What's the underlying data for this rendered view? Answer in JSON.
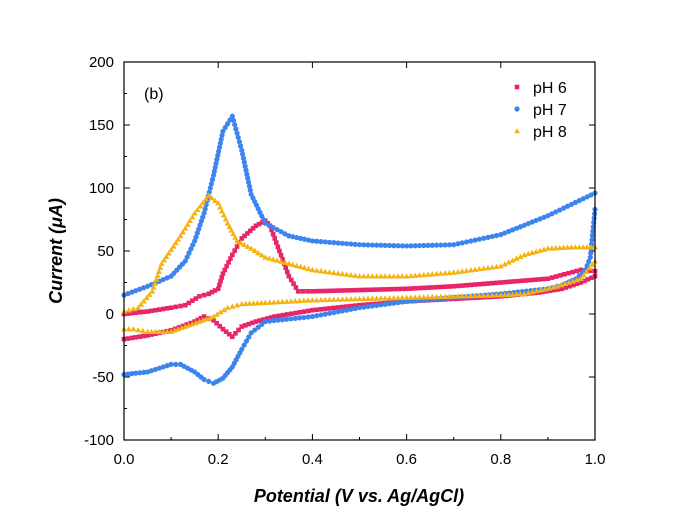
{
  "chart_data": {
    "type": "scatter",
    "panel_label": "(b)",
    "xlabel": "Potential (V vs. Ag/AgCl)",
    "ylabel": "Current (μA)",
    "xlim": [
      0.0,
      1.0
    ],
    "ylim": [
      -100,
      200
    ],
    "xticks": [
      "0.0",
      "0.2",
      "0.4",
      "0.6",
      "0.8",
      "1.0"
    ],
    "yticks": [
      "-100",
      "-50",
      "0",
      "50",
      "100",
      "150",
      "200"
    ],
    "legend_position": "top-right",
    "grid": false,
    "series": [
      {
        "name": "pH 6",
        "color": "#e8246a",
        "marker": "square",
        "forward": [
          [
            0.0,
            -20
          ],
          [
            0.05,
            -17
          ],
          [
            0.1,
            -13
          ],
          [
            0.15,
            -6
          ],
          [
            0.17,
            -2
          ],
          [
            0.19,
            -5
          ],
          [
            0.21,
            -12
          ],
          [
            0.23,
            -18
          ],
          [
            0.25,
            -10
          ],
          [
            0.28,
            -6
          ],
          [
            0.32,
            -2
          ],
          [
            0.4,
            3
          ],
          [
            0.5,
            7
          ],
          [
            0.6,
            10
          ],
          [
            0.7,
            12
          ],
          [
            0.8,
            14
          ],
          [
            0.88,
            17
          ],
          [
            0.93,
            20
          ],
          [
            0.97,
            25
          ],
          [
            1.0,
            30
          ]
        ],
        "reverse": [
          [
            1.0,
            34
          ],
          [
            0.97,
            35
          ],
          [
            0.9,
            28
          ],
          [
            0.8,
            25
          ],
          [
            0.7,
            22
          ],
          [
            0.6,
            20
          ],
          [
            0.5,
            19
          ],
          [
            0.4,
            18
          ],
          [
            0.37,
            18
          ],
          [
            0.35,
            30
          ],
          [
            0.33,
            50
          ],
          [
            0.31,
            70
          ],
          [
            0.3,
            74
          ],
          [
            0.28,
            70
          ],
          [
            0.25,
            60
          ],
          [
            0.23,
            47
          ],
          [
            0.21,
            32
          ],
          [
            0.2,
            20
          ],
          [
            0.18,
            16
          ],
          [
            0.16,
            14
          ],
          [
            0.13,
            7
          ],
          [
            0.1,
            5
          ],
          [
            0.05,
            2
          ],
          [
            0.0,
            0
          ]
        ]
      },
      {
        "name": "pH 7",
        "color": "#3d85ee",
        "marker": "circle",
        "forward": [
          [
            0.0,
            15
          ],
          [
            0.05,
            22
          ],
          [
            0.1,
            30
          ],
          [
            0.13,
            42
          ],
          [
            0.15,
            58
          ],
          [
            0.17,
            80
          ],
          [
            0.19,
            110
          ],
          [
            0.21,
            145
          ],
          [
            0.23,
            157
          ],
          [
            0.25,
            130
          ],
          [
            0.27,
            95
          ],
          [
            0.3,
            72
          ],
          [
            0.35,
            62
          ],
          [
            0.4,
            58
          ],
          [
            0.5,
            55
          ],
          [
            0.6,
            54
          ],
          [
            0.7,
            55
          ],
          [
            0.8,
            63
          ],
          [
            0.9,
            78
          ],
          [
            0.95,
            87
          ],
          [
            1.0,
            96
          ]
        ],
        "reverse": [
          [
            1.0,
            83
          ],
          [
            0.99,
            45
          ],
          [
            0.98,
            35
          ],
          [
            0.96,
            28
          ],
          [
            0.93,
            23
          ],
          [
            0.9,
            20
          ],
          [
            0.8,
            16
          ],
          [
            0.6,
            10
          ],
          [
            0.5,
            5
          ],
          [
            0.4,
            -2
          ],
          [
            0.3,
            -6
          ],
          [
            0.27,
            -15
          ],
          [
            0.25,
            -28
          ],
          [
            0.23,
            -42
          ],
          [
            0.21,
            -51
          ],
          [
            0.19,
            -55
          ],
          [
            0.17,
            -52
          ],
          [
            0.15,
            -46
          ],
          [
            0.12,
            -40
          ],
          [
            0.1,
            -40
          ],
          [
            0.05,
            -46
          ],
          [
            0.0,
            -48
          ]
        ]
      },
      {
        "name": "pH 8",
        "color": "#f5b312",
        "marker": "triangle",
        "forward": [
          [
            0.0,
            2
          ],
          [
            0.03,
            5
          ],
          [
            0.06,
            18
          ],
          [
            0.08,
            40
          ],
          [
            0.12,
            62
          ],
          [
            0.15,
            80
          ],
          [
            0.18,
            94
          ],
          [
            0.2,
            88
          ],
          [
            0.22,
            72
          ],
          [
            0.24,
            58
          ],
          [
            0.27,
            52
          ],
          [
            0.3,
            45
          ],
          [
            0.4,
            35
          ],
          [
            0.5,
            30
          ],
          [
            0.6,
            30
          ],
          [
            0.7,
            33
          ],
          [
            0.8,
            38
          ],
          [
            0.85,
            47
          ],
          [
            0.9,
            52
          ],
          [
            0.95,
            53
          ],
          [
            1.0,
            53
          ]
        ],
        "reverse": [
          [
            1.0,
            42
          ],
          [
            0.97,
            28
          ],
          [
            0.92,
            22
          ],
          [
            0.85,
            16
          ],
          [
            0.8,
            15
          ],
          [
            0.7,
            14
          ],
          [
            0.6,
            13
          ],
          [
            0.5,
            12
          ],
          [
            0.4,
            11
          ],
          [
            0.3,
            9
          ],
          [
            0.25,
            8
          ],
          [
            0.22,
            5
          ],
          [
            0.19,
            -2
          ],
          [
            0.16,
            -6
          ],
          [
            0.13,
            -10
          ],
          [
            0.1,
            -14
          ],
          [
            0.05,
            -14
          ],
          [
            0.02,
            -12
          ],
          [
            0.0,
            -12
          ]
        ]
      }
    ]
  }
}
